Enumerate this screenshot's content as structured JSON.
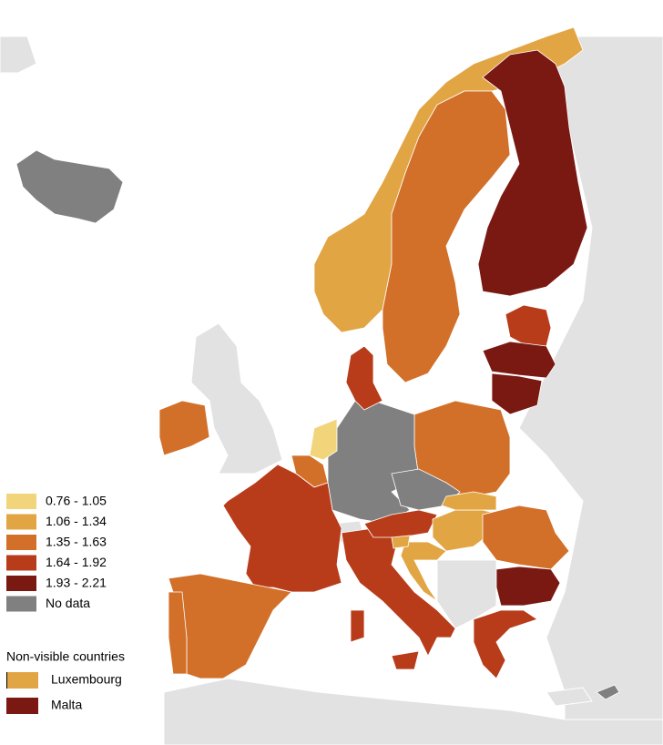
{
  "legend": {
    "items": [
      {
        "label": "0.76 - 1.05",
        "color": "#f2d57a"
      },
      {
        "label": "1.06 - 1.34",
        "color": "#e2a544"
      },
      {
        "label": "1.35 - 1.63",
        "color": "#d2702a"
      },
      {
        "label": "1.64 - 1.92",
        "color": "#b83c1a"
      },
      {
        "label": "1.93 - 2.21",
        "color": "#7a1812"
      },
      {
        "label": "No data",
        "color": "#808080"
      }
    ]
  },
  "non_visible": {
    "title": "Non-visible countries",
    "items": [
      {
        "label": "Luxembourg",
        "color": "#e2a544"
      },
      {
        "label": "Malta",
        "color": "#7a1812"
      }
    ]
  }
}
